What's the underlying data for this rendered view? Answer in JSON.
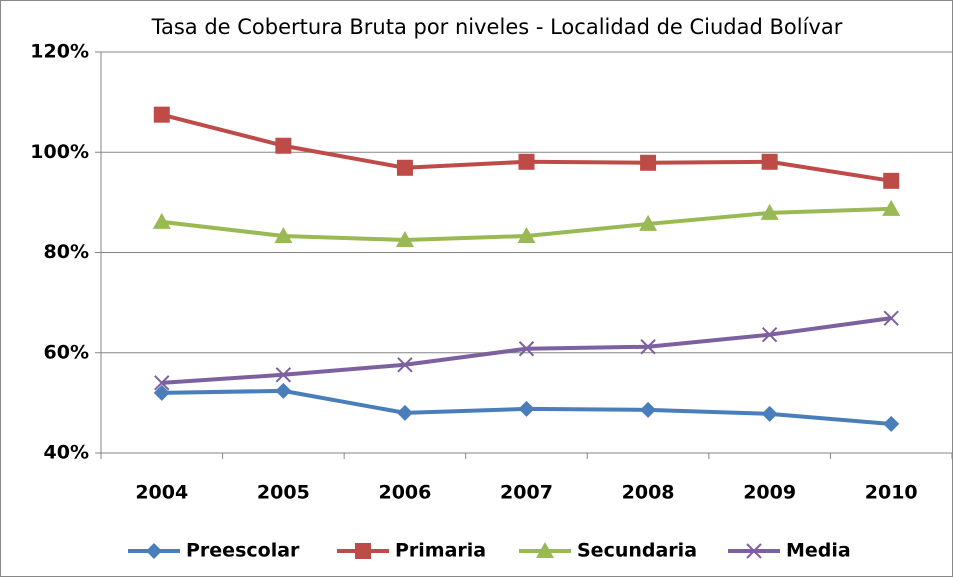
{
  "chart_data": {
    "type": "line",
    "title": "Tasa de Cobertura Bruta por niveles - Localidad de Ciudad Bolívar",
    "categories": [
      "2004",
      "2005",
      "2006",
      "2007",
      "2008",
      "2009",
      "2010"
    ],
    "series": [
      {
        "name": "Preescolar",
        "color": "#4a7ebb",
        "marker": "diamond",
        "values": [
          52.0,
          52.4,
          48.0,
          48.8,
          48.6,
          47.8,
          45.8
        ]
      },
      {
        "name": "Primaria",
        "color": "#be4b48",
        "marker": "square",
        "values": [
          107.5,
          101.3,
          96.9,
          98.1,
          97.9,
          98.1,
          94.3
        ]
      },
      {
        "name": "Secundaria",
        "color": "#98b954",
        "marker": "triangle",
        "values": [
          86.1,
          83.3,
          82.5,
          83.3,
          85.7,
          87.9,
          88.7
        ]
      },
      {
        "name": "Media",
        "color": "#7d60a0",
        "marker": "x",
        "values": [
          54.0,
          55.6,
          57.6,
          60.8,
          61.2,
          63.6,
          66.9
        ]
      }
    ],
    "ylim": [
      40,
      120
    ],
    "yticks": [
      {
        "value": 40,
        "label": "40%"
      },
      {
        "value": 60,
        "label": "60%"
      },
      {
        "value": 80,
        "label": "80%"
      },
      {
        "value": 100,
        "label": "100%"
      },
      {
        "value": 120,
        "label": "120%"
      }
    ],
    "grid": true,
    "legend": "bottom"
  }
}
